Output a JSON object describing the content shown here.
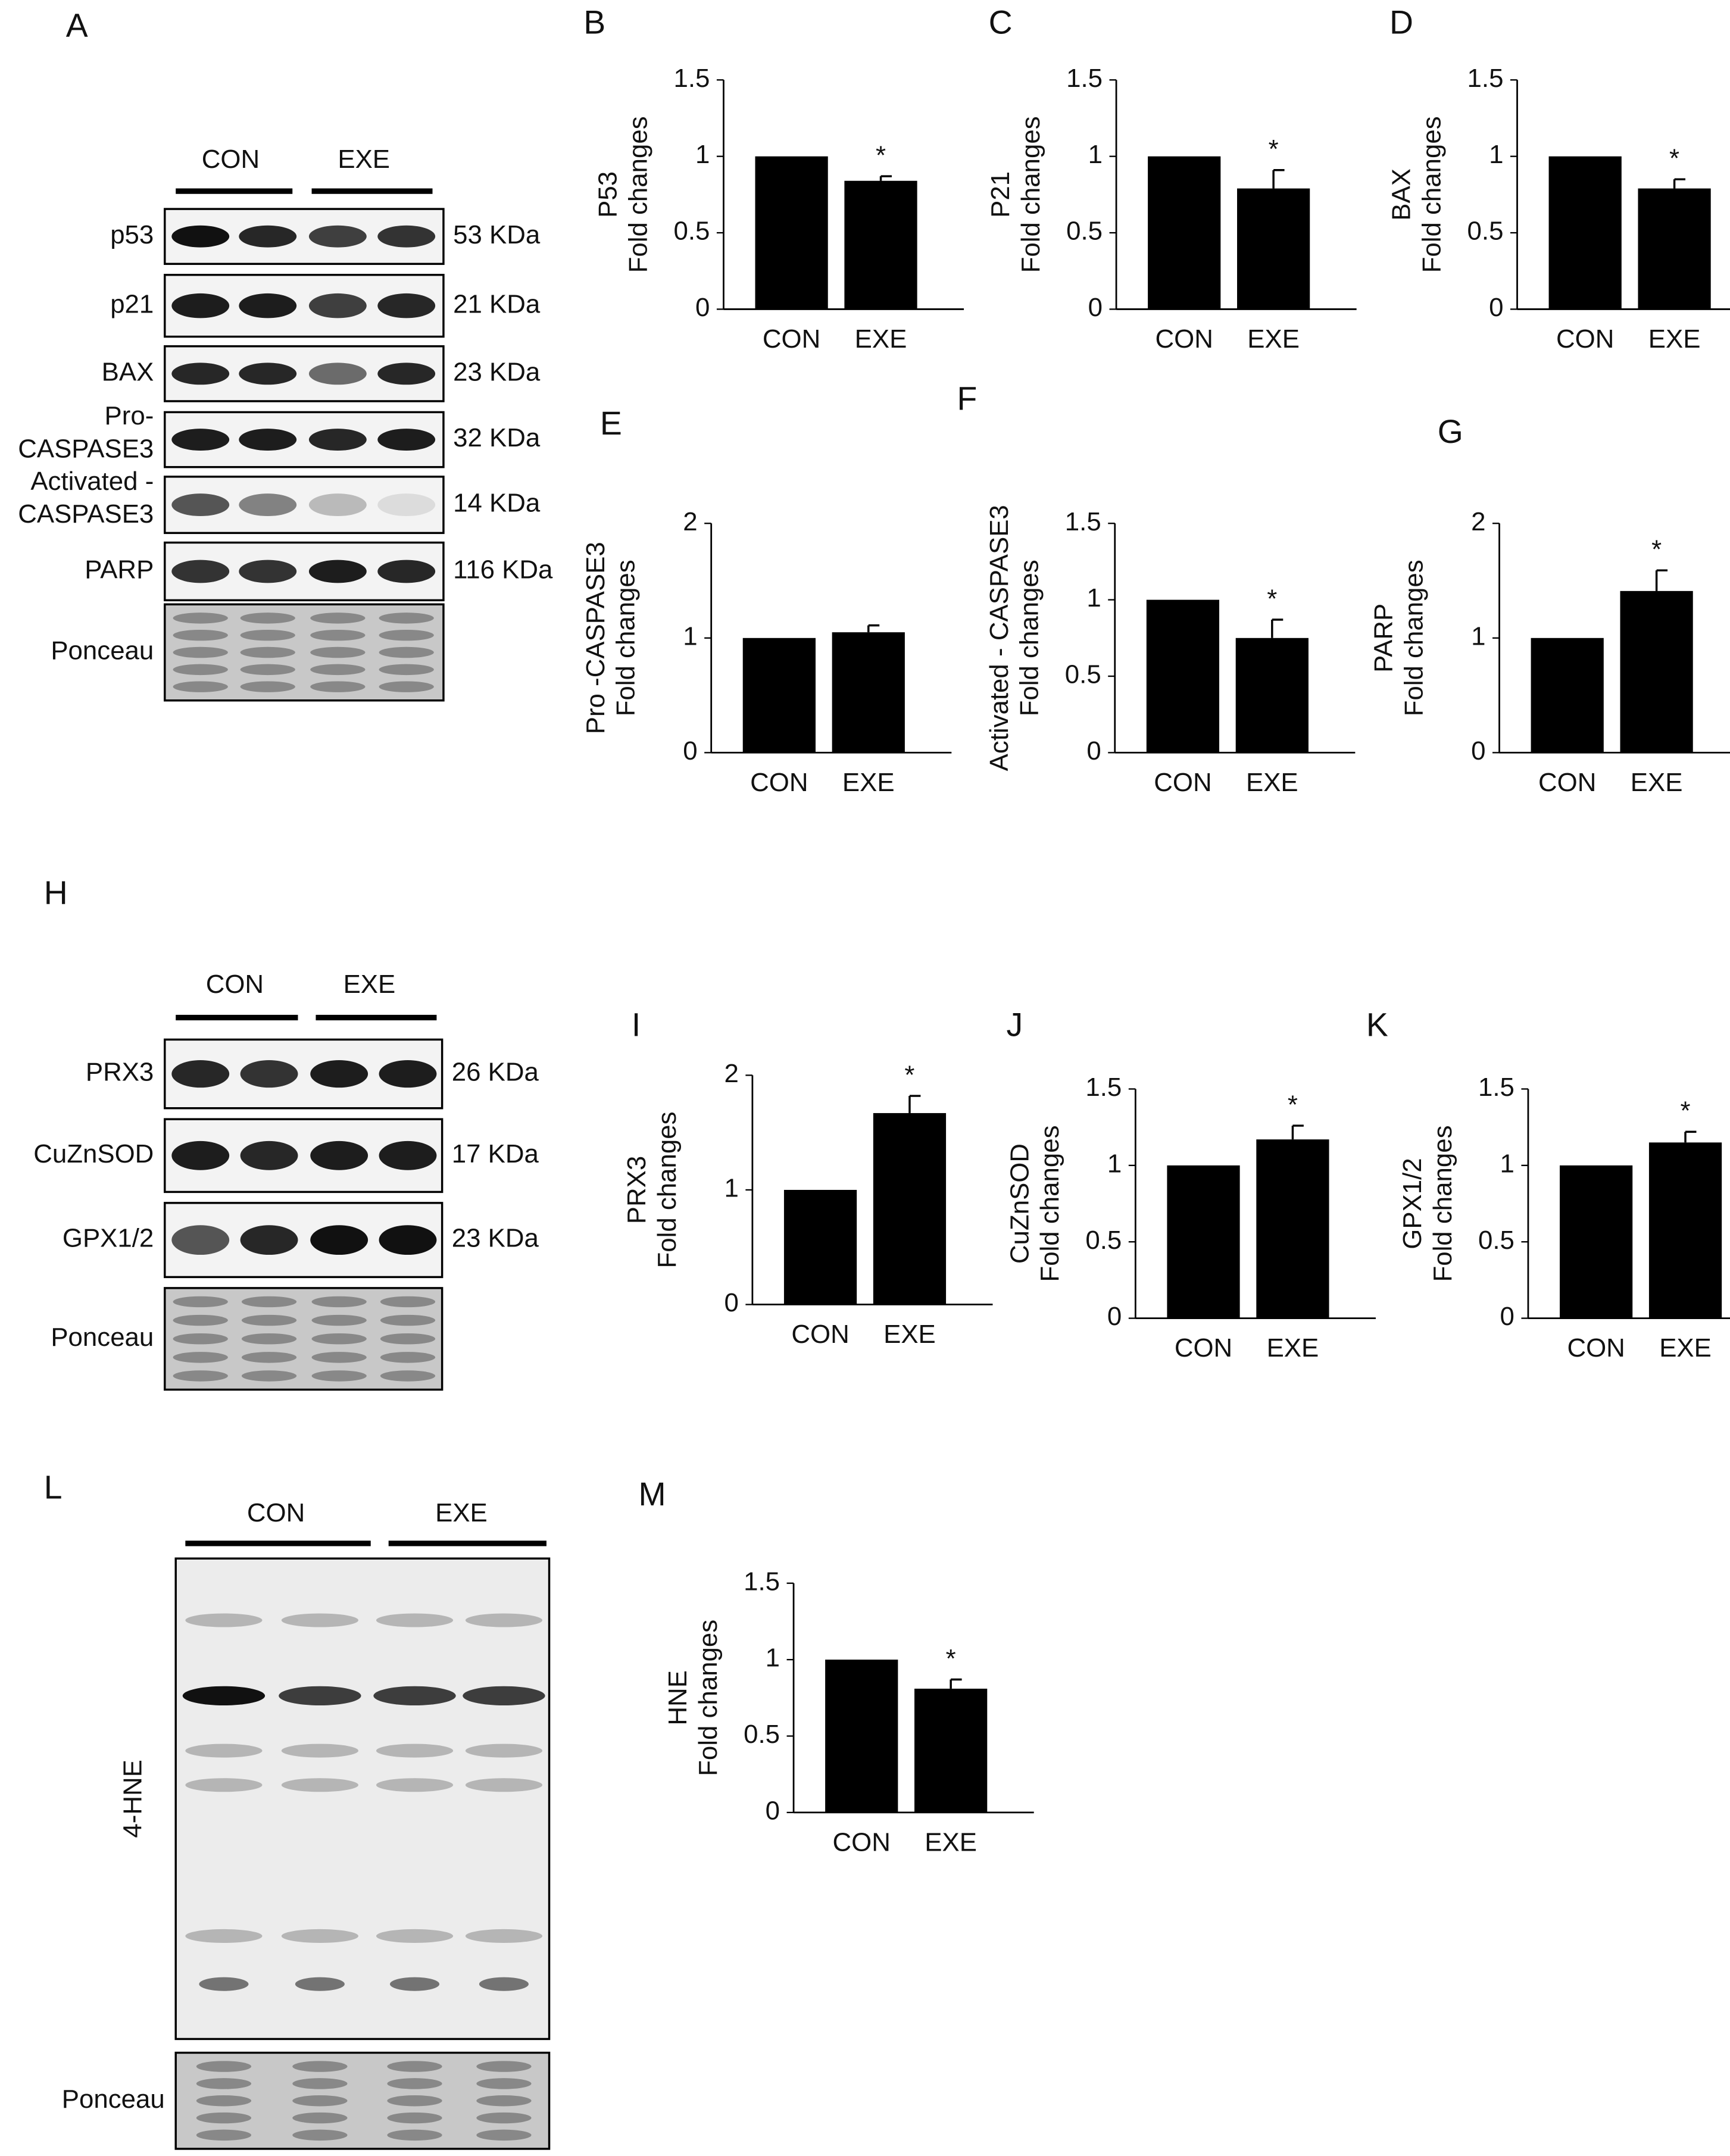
{
  "chart_data": [
    {
      "type": "bar",
      "panel": "B",
      "ylabel": [
        "P53",
        "Fold changes"
      ],
      "categories": [
        "CON",
        "EXE"
      ],
      "values": [
        1,
        0.84
      ],
      "errors": [
        null,
        0.03
      ],
      "annotation": "*",
      "color": "#000000",
      "ylim": [
        0,
        1.5
      ],
      "yticks": [
        0,
        0.5,
        1,
        1.5
      ]
    },
    {
      "type": "bar",
      "panel": "C",
      "ylabel": [
        "P21",
        "Fold changes"
      ],
      "categories": [
        "CON",
        "EXE"
      ],
      "values": [
        1,
        0.79
      ],
      "errors": [
        null,
        0.12
      ],
      "annotation": "*",
      "color": "#000000",
      "ylim": [
        0,
        1.5
      ],
      "yticks": [
        0,
        0.5,
        1,
        1.5
      ]
    },
    {
      "type": "bar",
      "panel": "D",
      "ylabel": [
        "BAX",
        "Fold changes"
      ],
      "categories": [
        "CON",
        "EXE"
      ],
      "values": [
        1,
        0.79
      ],
      "errors": [
        null,
        0.06
      ],
      "annotation": "*",
      "color": "#000000",
      "ylim": [
        0,
        1.5
      ],
      "yticks": [
        0,
        0.5,
        1,
        1.5
      ]
    },
    {
      "type": "bar",
      "panel": "E",
      "ylabel": [
        "Pro -CASPASE3",
        "Fold changes"
      ],
      "categories": [
        "CON",
        "EXE"
      ],
      "values": [
        1,
        1.05
      ],
      "errors": [
        null,
        0.06
      ],
      "color": "#000000",
      "ylim": [
        0,
        2
      ],
      "yticks": [
        0,
        1,
        2
      ]
    },
    {
      "type": "bar",
      "panel": "F",
      "ylabel": [
        "Activated - CASPASE3",
        "Fold changes"
      ],
      "categories": [
        "CON",
        "EXE"
      ],
      "values": [
        1,
        0.75
      ],
      "errors": [
        null,
        0.12
      ],
      "annotation": "*",
      "color": "#000000",
      "ylim": [
        0,
        1.5
      ],
      "yticks": [
        0,
        0.5,
        1,
        1.5
      ]
    },
    {
      "type": "bar",
      "panel": "G",
      "ylabel": [
        "PARP",
        "Fold changes"
      ],
      "categories": [
        "CON",
        "EXE"
      ],
      "values": [
        1,
        1.41
      ],
      "errors": [
        null,
        0.18
      ],
      "annotation": "*",
      "color": "#000000",
      "ylim": [
        0,
        2
      ],
      "yticks": [
        0,
        1,
        2
      ]
    },
    {
      "type": "bar",
      "panel": "I",
      "ylabel": [
        "PRX3",
        "Fold changes"
      ],
      "categories": [
        "CON",
        "EXE"
      ],
      "values": [
        1,
        1.67
      ],
      "errors": [
        null,
        0.15
      ],
      "annotation": "*",
      "color": "#000000",
      "ylim": [
        0,
        2
      ],
      "yticks": [
        0,
        1,
        2
      ]
    },
    {
      "type": "bar",
      "panel": "J",
      "ylabel": [
        "CuZnSOD",
        "Fold changes"
      ],
      "categories": [
        "CON",
        "EXE"
      ],
      "values": [
        1,
        1.17
      ],
      "errors": [
        null,
        0.09
      ],
      "annotation": "*",
      "color": "#000000",
      "ylim": [
        0,
        1.5
      ],
      "yticks": [
        0,
        0.5,
        1,
        1.5
      ]
    },
    {
      "type": "bar",
      "panel": "K",
      "ylabel": [
        "GPX1/2",
        "Fold changes"
      ],
      "categories": [
        "CON",
        "EXE"
      ],
      "values": [
        1,
        1.15
      ],
      "errors": [
        null,
        0.07
      ],
      "annotation": "*",
      "color": "#000000",
      "ylim": [
        0,
        1.5
      ],
      "yticks": [
        0,
        0.5,
        1,
        1.5
      ]
    },
    {
      "type": "bar",
      "panel": "M",
      "ylabel": [
        "HNE",
        "Fold changes"
      ],
      "categories": [
        "CON",
        "EXE"
      ],
      "values": [
        1,
        0.81
      ],
      "errors": [
        null,
        0.06
      ],
      "annotation": "*",
      "color": "#000000",
      "ylim": [
        0,
        1.5
      ],
      "yticks": [
        0,
        0.5,
        1,
        1.5
      ]
    }
  ],
  "blots": [
    {
      "panel": "A",
      "groups": [
        "CON",
        "EXE"
      ],
      "rows": [
        {
          "name": [
            "p53"
          ],
          "size": "53 KDa"
        },
        {
          "name": [
            "p21"
          ],
          "size": "21 KDa"
        },
        {
          "name": [
            "BAX"
          ],
          "size": "23 KDa"
        },
        {
          "name": [
            "Pro-",
            "CASPASE3"
          ],
          "size": "32 KDa"
        },
        {
          "name": [
            "Activated -",
            "CASPASE3"
          ],
          "size": "14 KDa"
        },
        {
          "name": [
            "PARP"
          ],
          "size": "116 KDa"
        },
        {
          "name": [
            "Ponceau"
          ]
        }
      ]
    },
    {
      "panel": "H",
      "groups": [
        "CON",
        "EXE"
      ],
      "rows": [
        {
          "name": [
            "PRX3"
          ],
          "size": "26 KDa"
        },
        {
          "name": [
            "CuZnSOD"
          ],
          "size": "17 KDa"
        },
        {
          "name": [
            "GPX1/2"
          ],
          "size": "23 KDa"
        },
        {
          "name": [
            "Ponceau"
          ]
        }
      ]
    },
    {
      "panel": "L",
      "groups": [
        "CON",
        "EXE"
      ],
      "rows": [
        {
          "name": [
            "4-HNE"
          ]
        },
        {
          "name": [
            "Ponceau"
          ]
        }
      ]
    }
  ]
}
